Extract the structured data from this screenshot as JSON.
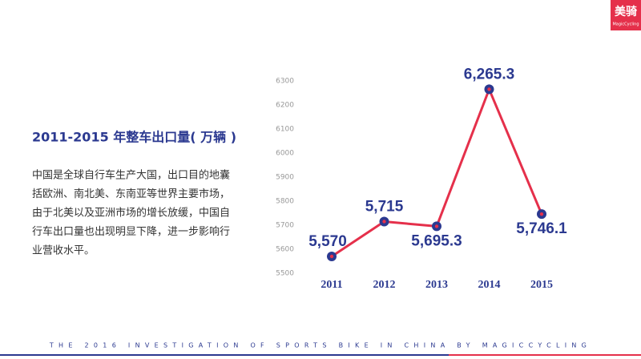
{
  "slide": {
    "logo": "美骑",
    "logo_sub": "MagicCycling",
    "paragraph": [
      "中国是全球自行车生产大国，出口目的地囊",
      "括欧洲、南北美、东南亚等世界主要市场，",
      "由于北美以及亚洲市场的增长放缓，中国自",
      "行车出口量也出现明显下降，进一步影响行",
      "业营收水平。"
    ],
    "footer": "THE 2016 INVESTIGATION OF SPORTS BIKE IN CHINA BY MAGICCYCLING"
  },
  "chart_data": {
    "type": "line",
    "title": "2011-2015 年整车出口量( 万辆 )",
    "categories": [
      "2011",
      "2012",
      "2013",
      "2014",
      "2015"
    ],
    "values": [
      5570,
      5715,
      5695.3,
      6265.3,
      5746.1
    ],
    "value_labels": [
      "5,570",
      "5,715",
      "5,695.3",
      "6,265.3",
      "5,746.1"
    ],
    "color": "#e5304b",
    "marker_color": "#2b3990",
    "ylim": [
      5500,
      6300
    ],
    "yticks": [
      5500,
      5600,
      5700,
      5800,
      5900,
      6000,
      6100,
      6200,
      6300
    ],
    "grid": false
  }
}
